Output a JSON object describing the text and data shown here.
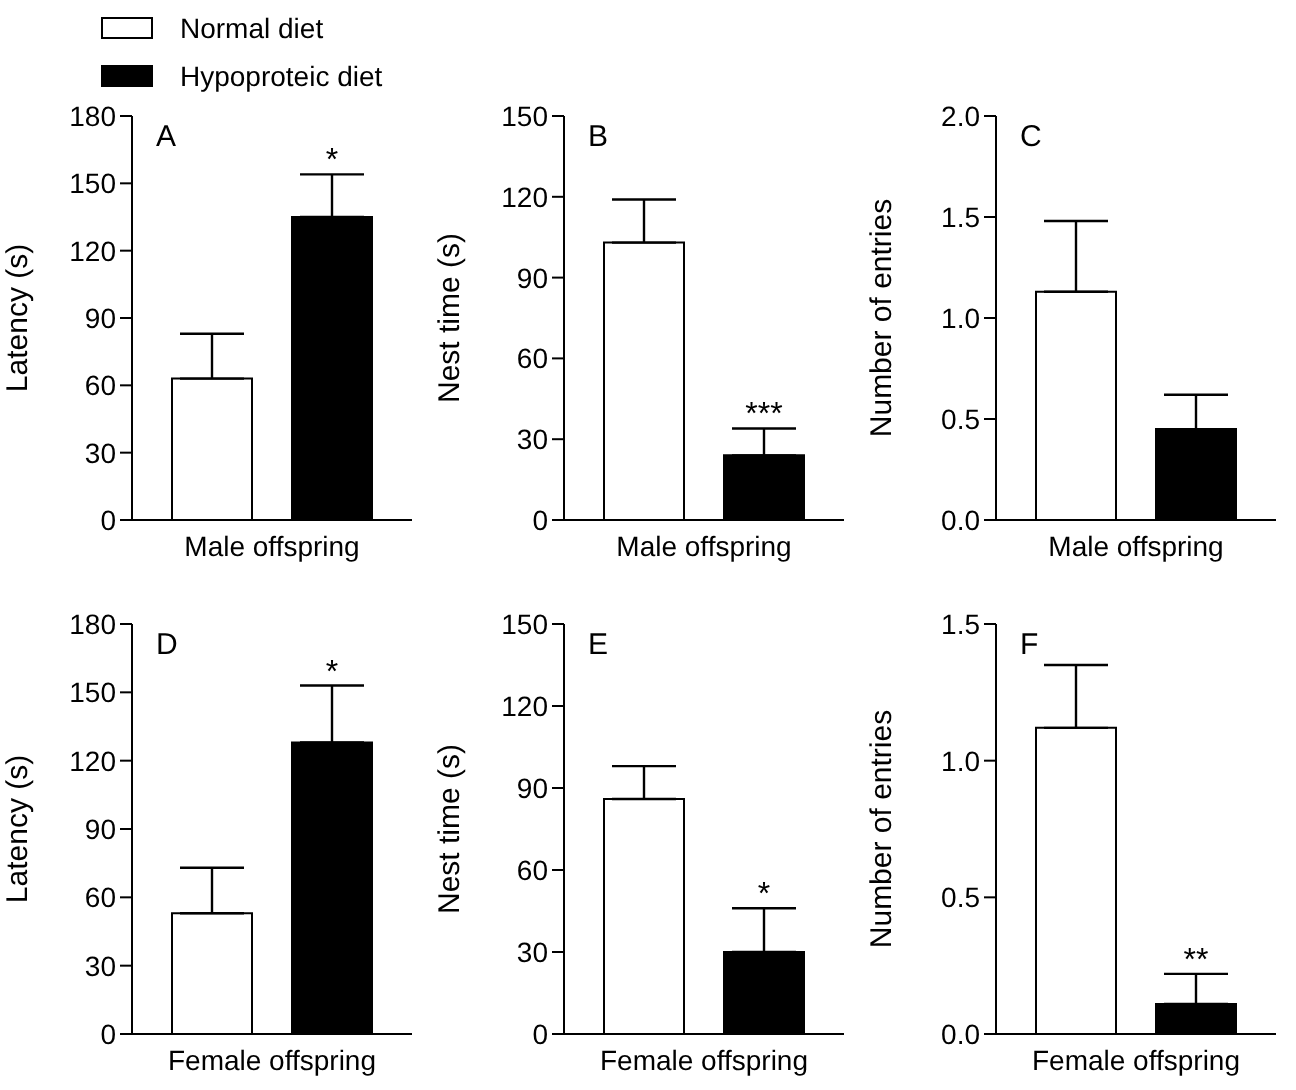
{
  "chart_data": [
    {
      "type": "bar",
      "title": "A",
      "ylabel": "Latency (s)",
      "categories": [
        "Male offspring"
      ],
      "ylim": [
        0,
        180
      ],
      "yticks": [
        0,
        30,
        60,
        90,
        120,
        150,
        180
      ],
      "legend": "top left",
      "annotations": [
        "*"
      ],
      "series": [
        {
          "name": "Normal diet",
          "color": "#ffffff",
          "values": [
            63
          ],
          "errors": [
            [
              63,
              83
            ]
          ]
        },
        {
          "name": "Hypoproteic diet",
          "color": "#000000",
          "values": [
            135
          ],
          "errors": [
            [
              135,
              154
            ]
          ]
        }
      ]
    },
    {
      "type": "bar",
      "title": "B",
      "ylabel": "Nest time (s)",
      "categories": [
        "Male offspring"
      ],
      "ylim": [
        0,
        150
      ],
      "yticks": [
        0,
        30,
        60,
        90,
        120,
        150
      ],
      "annotations": [
        "***"
      ],
      "series": [
        {
          "color": "#ffffff",
          "values": [
            103
          ],
          "errors": [
            [
              103,
              119
            ]
          ]
        },
        {
          "color": "#000000",
          "values": [
            24
          ],
          "errors": [
            [
              24,
              34
            ]
          ]
        }
      ]
    },
    {
      "type": "bar",
      "title": "C",
      "ylabel": "Number of entries",
      "categories": [
        "Male offspring"
      ],
      "ylim": [
        0,
        2
      ],
      "yticks": [
        {
          "value": 0,
          "label": "0.0"
        },
        0.5,
        {
          "value": 1,
          "label": "1.0"
        },
        1.5,
        {
          "value": 2,
          "label": "2.0"
        }
      ],
      "series": [
        {
          "color": "#ffffff",
          "values": [
            1.13
          ],
          "errors": [
            [
              1.13,
              1.48
            ]
          ]
        },
        {
          "color": "#000000",
          "values": [
            0.45
          ],
          "errors": [
            [
              0.45,
              0.62
            ]
          ]
        }
      ]
    },
    {
      "type": "bar",
      "title": "D",
      "ylabel": "Latency (s)",
      "categories": [
        "Female offspring"
      ],
      "ylim": [
        0,
        180
      ],
      "yticks": [
        0,
        30,
        60,
        90,
        120,
        150,
        180
      ],
      "annotations": [
        "*"
      ],
      "series": [
        {
          "color": "#ffffff",
          "values": [
            53
          ],
          "errors": [
            [
              53,
              73
            ]
          ]
        },
        {
          "color": "#000000",
          "values": [
            128
          ],
          "errors": [
            [
              128,
              153
            ]
          ]
        }
      ]
    },
    {
      "type": "bar",
      "title": "E",
      "ylabel": "Nest time (s)",
      "categories": [
        "Female offspring"
      ],
      "ylim": [
        0,
        150
      ],
      "yticks": [
        0,
        30,
        60,
        90,
        120,
        150
      ],
      "annotations": [
        "*"
      ],
      "series": [
        {
          "color": "#ffffff",
          "values": [
            86
          ],
          "errors": [
            [
              86,
              98
            ]
          ]
        },
        {
          "color": "#000000",
          "values": [
            30
          ],
          "errors": [
            [
              30,
              46
            ]
          ]
        }
      ]
    },
    {
      "type": "bar",
      "title": "F",
      "ylabel": "Number of entries",
      "categories": [
        "Female offspring"
      ],
      "ylim": [
        0,
        1.5
      ],
      "yticks": [
        {
          "value": 0,
          "label": "0.0"
        },
        0.5,
        {
          "value": 1,
          "label": "1.0"
        },
        1.5
      ],
      "annotations": [
        "**"
      ],
      "series": [
        {
          "color": "#ffffff",
          "values": [
            1.12
          ],
          "errors": [
            [
              1.12,
              1.35
            ]
          ]
        },
        {
          "color": "#000000",
          "values": [
            0.11
          ],
          "errors": [
            [
              0.11,
              0.22
            ]
          ]
        }
      ]
    }
  ]
}
